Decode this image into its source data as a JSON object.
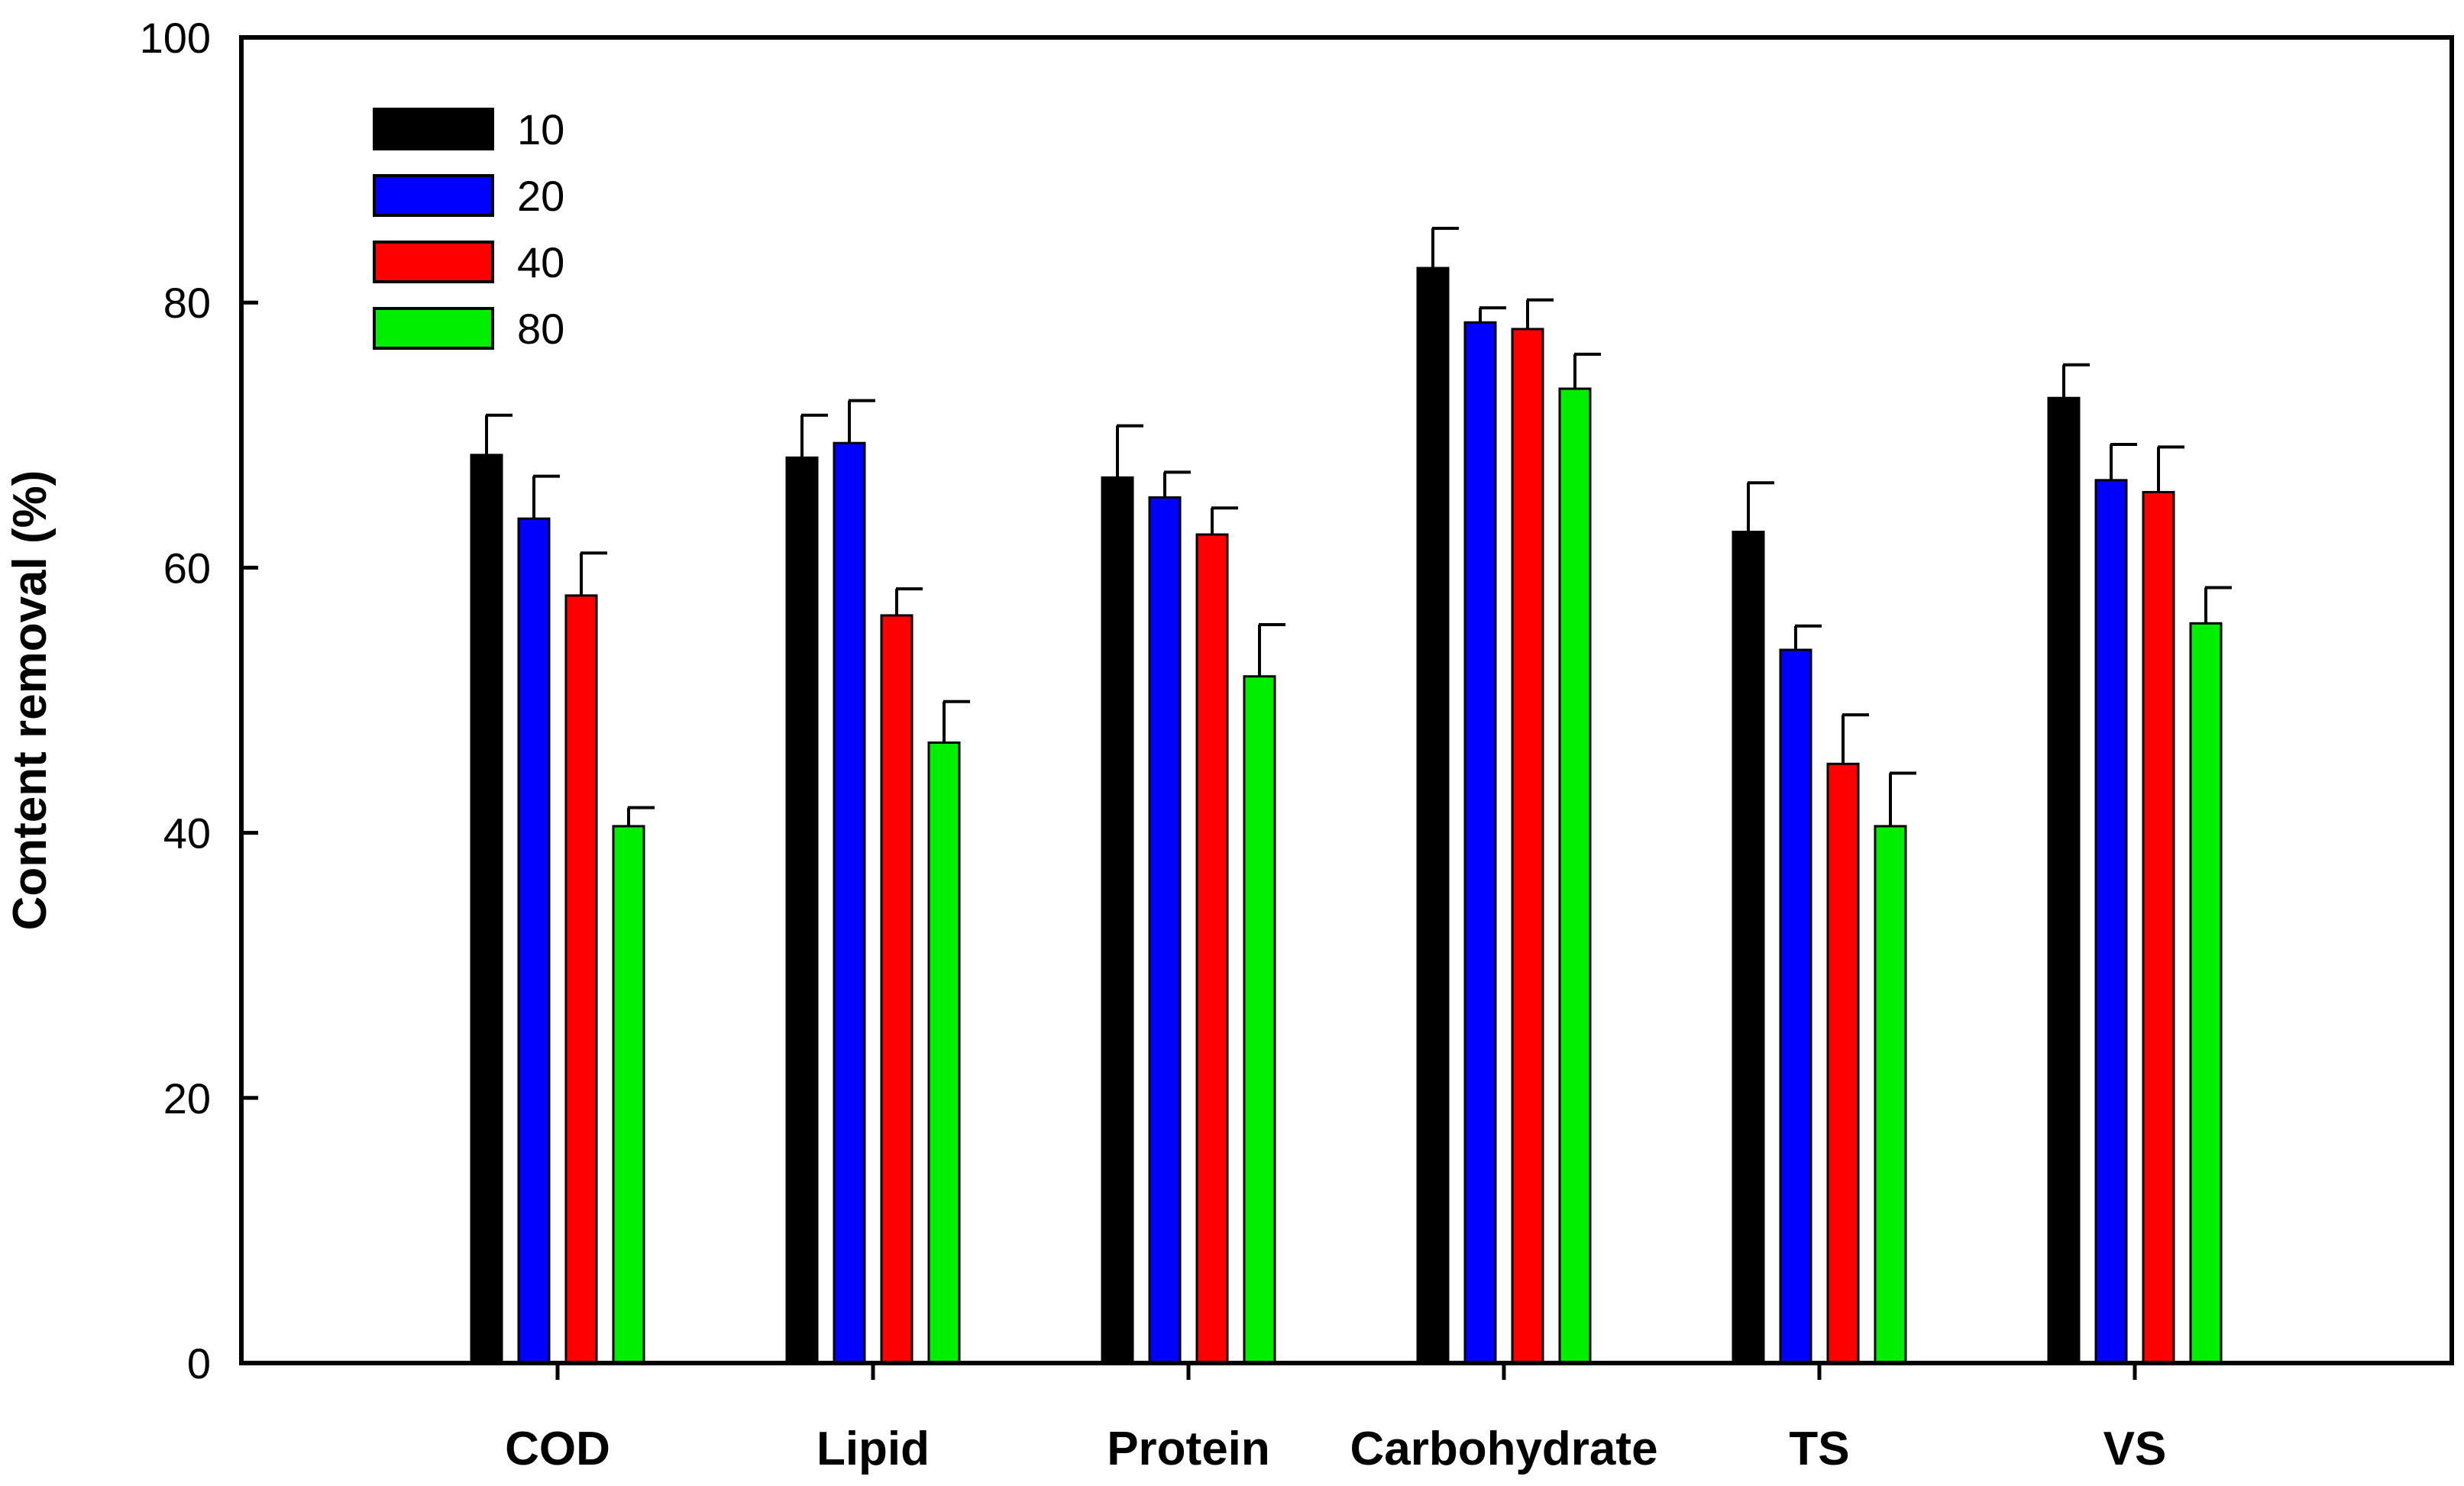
{
  "chart_data": {
    "type": "bar",
    "title": "",
    "xlabel": "",
    "ylabel": "Content removal (%)",
    "ylim": [
      0,
      100
    ],
    "yticks": [
      0,
      20,
      40,
      60,
      80,
      100
    ],
    "grid": false,
    "legend_position": "top-left",
    "categories": [
      "COD",
      "Lipid",
      "Protein",
      "Carbohydrate",
      "TS",
      "VS"
    ],
    "series": [
      {
        "name": "10",
        "color": "#000000",
        "values": [
          68.5,
          68.3,
          66.8,
          82.6,
          62.7,
          72.8
        ],
        "errors": [
          3.0,
          3.2,
          3.9,
          3.0,
          3.7,
          2.5
        ]
      },
      {
        "name": "20",
        "color": "#0000ff",
        "values": [
          63.7,
          69.4,
          65.3,
          78.5,
          53.8,
          66.6
        ],
        "errors": [
          3.2,
          3.2,
          1.9,
          1.1,
          1.8,
          2.7
        ]
      },
      {
        "name": "40",
        "color": "#ff0000",
        "values": [
          57.9,
          56.4,
          62.5,
          78.0,
          45.2,
          65.7
        ],
        "errors": [
          3.2,
          2.0,
          2.0,
          2.2,
          3.7,
          3.4
        ]
      },
      {
        "name": "80",
        "color": "#00ee00",
        "values": [
          40.5,
          46.8,
          51.8,
          73.5,
          40.5,
          55.8
        ],
        "errors": [
          1.4,
          3.1,
          3.9,
          2.6,
          4.0,
          2.7
        ]
      }
    ]
  }
}
